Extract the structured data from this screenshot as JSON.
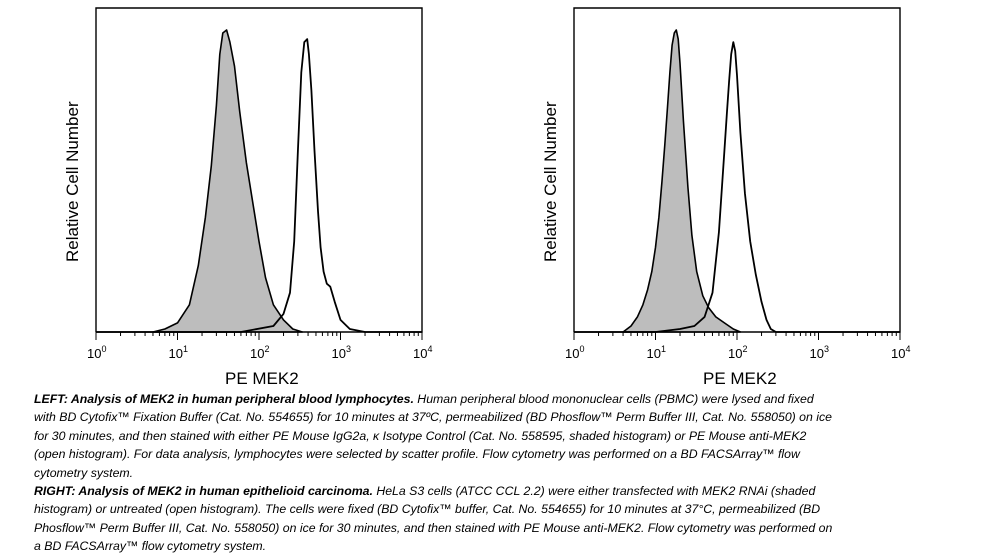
{
  "chart_data": [
    {
      "type": "area",
      "panel": "left",
      "xlabel": "PE MEK2",
      "ylabel": "Relative Cell Number",
      "xscale": "log",
      "xlim": [
        1,
        10000
      ],
      "xticks": [
        {
          "base": "10",
          "exp": "0"
        },
        {
          "base": "10",
          "exp": "1"
        },
        {
          "base": "10",
          "exp": "2"
        },
        {
          "base": "10",
          "exp": "3"
        },
        {
          "base": "10",
          "exp": "4"
        }
      ],
      "series": [
        {
          "style": "shaded",
          "x": [
            5,
            7,
            10,
            14,
            18,
            22,
            26,
            30,
            33,
            36,
            40,
            44,
            50,
            58,
            70,
            85,
            100,
            120,
            150,
            200,
            260,
            340
          ],
          "values": [
            0,
            0.01,
            0.03,
            0.09,
            0.22,
            0.38,
            0.55,
            0.75,
            0.92,
            0.99,
            1.0,
            0.96,
            0.88,
            0.73,
            0.56,
            0.42,
            0.3,
            0.18,
            0.09,
            0.04,
            0.01,
            0
          ]
        },
        {
          "style": "open",
          "x": [
            1,
            5,
            20,
            60,
            150,
            200,
            240,
            270,
            300,
            330,
            360,
            390,
            410,
            440,
            480,
            530,
            570,
            620,
            680,
            750,
            850,
            1000,
            1300,
            2000,
            10000
          ],
          "values": [
            0,
            0,
            0,
            0,
            0.02,
            0.06,
            0.13,
            0.3,
            0.6,
            0.86,
            0.96,
            0.97,
            0.92,
            0.8,
            0.6,
            0.4,
            0.28,
            0.2,
            0.16,
            0.15,
            0.1,
            0.04,
            0.01,
            0,
            0
          ]
        }
      ]
    },
    {
      "type": "area",
      "panel": "right",
      "xlabel": "PE MEK2",
      "ylabel": "Relative Cell Number",
      "xscale": "log",
      "xlim": [
        1,
        10000
      ],
      "xticks": [
        {
          "base": "10",
          "exp": "0"
        },
        {
          "base": "10",
          "exp": "1"
        },
        {
          "base": "10",
          "exp": "2"
        },
        {
          "base": "10",
          "exp": "3"
        },
        {
          "base": "10",
          "exp": "4"
        }
      ],
      "series": [
        {
          "style": "shaded",
          "x": [
            4,
            5,
            6,
            7,
            8,
            9,
            10,
            11,
            12,
            13,
            14,
            15,
            16,
            17,
            18,
            19,
            20,
            22,
            25,
            28,
            32,
            38,
            45,
            55,
            70,
            90,
            110
          ],
          "values": [
            0,
            0.02,
            0.05,
            0.09,
            0.14,
            0.2,
            0.28,
            0.38,
            0.5,
            0.62,
            0.74,
            0.86,
            0.95,
            0.99,
            1.0,
            0.97,
            0.89,
            0.7,
            0.48,
            0.32,
            0.2,
            0.12,
            0.08,
            0.05,
            0.03,
            0.01,
            0
          ]
        },
        {
          "style": "open",
          "x": [
            1,
            10,
            20,
            30,
            40,
            50,
            60,
            70,
            75,
            80,
            85,
            90,
            95,
            100,
            110,
            125,
            145,
            170,
            200,
            230,
            260,
            300,
            10000
          ],
          "values": [
            0,
            0,
            0.01,
            0.02,
            0.05,
            0.13,
            0.33,
            0.6,
            0.72,
            0.83,
            0.92,
            0.96,
            0.93,
            0.85,
            0.66,
            0.46,
            0.3,
            0.19,
            0.1,
            0.04,
            0.01,
            0,
            0
          ]
        }
      ]
    }
  ],
  "caption": {
    "left_heading": "LEFT: Analysis of MEK2 in human peripheral blood lymphocytes.",
    "left_text": " Human peripheral blood mononuclear cells (PBMC) were lysed and fixed with BD Cytofix™ Fixation Buffer (Cat. No. 554655) for 10 minutes at 37ºC, permeabilized (BD Phosflow™ Perm Buffer III, Cat. No. 558050) on ice for 30 minutes, and then stained with either PE Mouse IgG2a, κ Isotype Control (Cat. No. 558595, shaded histogram) or PE Mouse anti-MEK2 (open histogram).  For data analysis, lymphocytes were selected by scatter profile.  Flow cytometry was performed on a BD FACSArray™ flow cytometry system.",
    "right_heading": "RIGHT: Analysis of MEK2 in human epithelioid carcinoma.",
    "right_text": "  HeLa S3 cells (ATCC CCL 2.2) were either transfected with MEK2 RNAi (shaded histogram) or untreated (open histogram).  The cells were fixed (BD Cytofix™ buffer, Cat. No. 554655) for 10 minutes at 37°C, permeabilized (BD Phosflow™ Perm Buffer III, Cat. No. 558050) on ice for 30 minutes, and then stained with PE Mouse anti-MEK2. Flow cytometry was performed on a BD FACSArray™ flow cytometry system."
  }
}
